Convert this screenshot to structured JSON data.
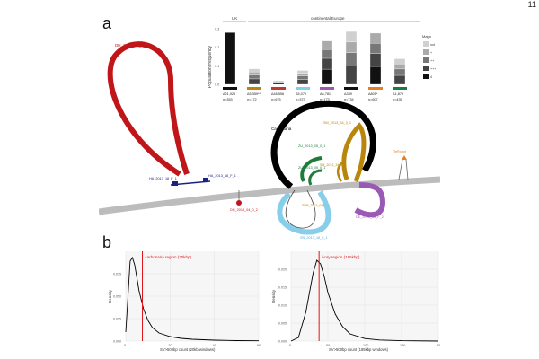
{
  "page_number": "11",
  "panel_a": {
    "letter": "a",
    "bar_chart": {
      "group_uk": "UK",
      "group_europe": "continental Europe",
      "ylabel": "Population frequency",
      "yticks": [
        "0.0",
        "0.1",
        "0.2",
        "0.3"
      ],
      "legend_title": "Magn",
      "legend_items": [
        "not",
        "+",
        "++",
        "+++",
        "4"
      ],
      "categories": [
        {
          "label": "Δ21,925",
          "n": "n=353",
          "color": "#111111"
        },
        {
          "label": "Δ5,359**",
          "n": "n=172",
          "color": "#b8860b"
        },
        {
          "label": "Δ46,556",
          "n": "n=675",
          "color": "#c0392b"
        },
        {
          "label": "Δ5,070",
          "n": "n=373",
          "color": "#87ceeb"
        },
        {
          "label": "Δ6,781",
          "n": "n=173",
          "color": "#9b59b6"
        },
        {
          "label": "Δ339",
          "n": "n=734",
          "color": "#111111"
        },
        {
          "label": "Δ805*",
          "n": "n=607",
          "color": "#e67e22"
        },
        {
          "label": "Δ1,879",
          "n": "n=439",
          "color": "#1e7b3a"
        }
      ]
    },
    "sv_labels": {
      "big_red": "DH_2013_04_0_2",
      "small_blue_left": "HA_2013_18_F_1",
      "small_blue_right": "HA_2013_18_F_1",
      "red_dot": "DH_2013_04_0_2",
      "carbonaria": "Carbonaria",
      "gold": "SM_2013_34_0_1",
      "green_top": "ZU_2013_05_0_1",
      "green_bottom": "ZU_2013_05_0_1",
      "gold_small": "SM_2013_34_0_1",
      "purple": "DE_2013_14_F_2",
      "orange": "TeRobot",
      "tan_label": "SNP_2013_04_0_1",
      "light_blue": "SN_2013_18_0_1"
    }
  },
  "panel_b": {
    "letter": "b",
    "plots": [
      {
        "region_label": "carbonaria region (20kbp)",
        "ylabel": "Density",
        "xlabel": "SV>500bp count (20kb windows)",
        "xticks": [
          "0",
          "20",
          "40",
          "60"
        ],
        "yticks": [
          "0.000",
          "0.025",
          "0.050",
          "0.075"
        ],
        "xlim": [
          0,
          60
        ],
        "ylim": [
          0,
          0.1
        ],
        "marker_x": 7.5,
        "density": {
          "x": [
            0,
            1,
            2,
            3,
            4,
            5,
            6,
            8,
            10,
            12,
            15,
            20,
            25,
            30,
            40,
            50,
            60
          ],
          "y": [
            0.01,
            0.05,
            0.089,
            0.093,
            0.085,
            0.071,
            0.056,
            0.036,
            0.023,
            0.015,
            0.009,
            0.005,
            0.003,
            0.002,
            0.001,
            0.0005,
            0.0003
          ]
        }
      },
      {
        "region_label": "ivory region (185kbp)",
        "ylabel": "Density",
        "xlabel": "SV>500bp count (185kbp windows)",
        "xticks": [
          "0",
          "50",
          "100",
          "150",
          "200"
        ],
        "yticks": [
          "0.000",
          "0.005",
          "0.010",
          "0.015",
          "0.020"
        ],
        "xlim": [
          0,
          200
        ],
        "ylim": [
          0,
          0.025
        ],
        "marker_x": 38,
        "density": {
          "x": [
            0,
            10,
            20,
            30,
            35,
            40,
            45,
            50,
            60,
            70,
            80,
            100,
            120,
            150,
            200
          ],
          "y": [
            0.0,
            0.001,
            0.008,
            0.019,
            0.0225,
            0.0215,
            0.018,
            0.0135,
            0.0075,
            0.004,
            0.002,
            0.0007,
            0.0003,
            0.0001,
            0.0
          ]
        }
      }
    ]
  }
}
